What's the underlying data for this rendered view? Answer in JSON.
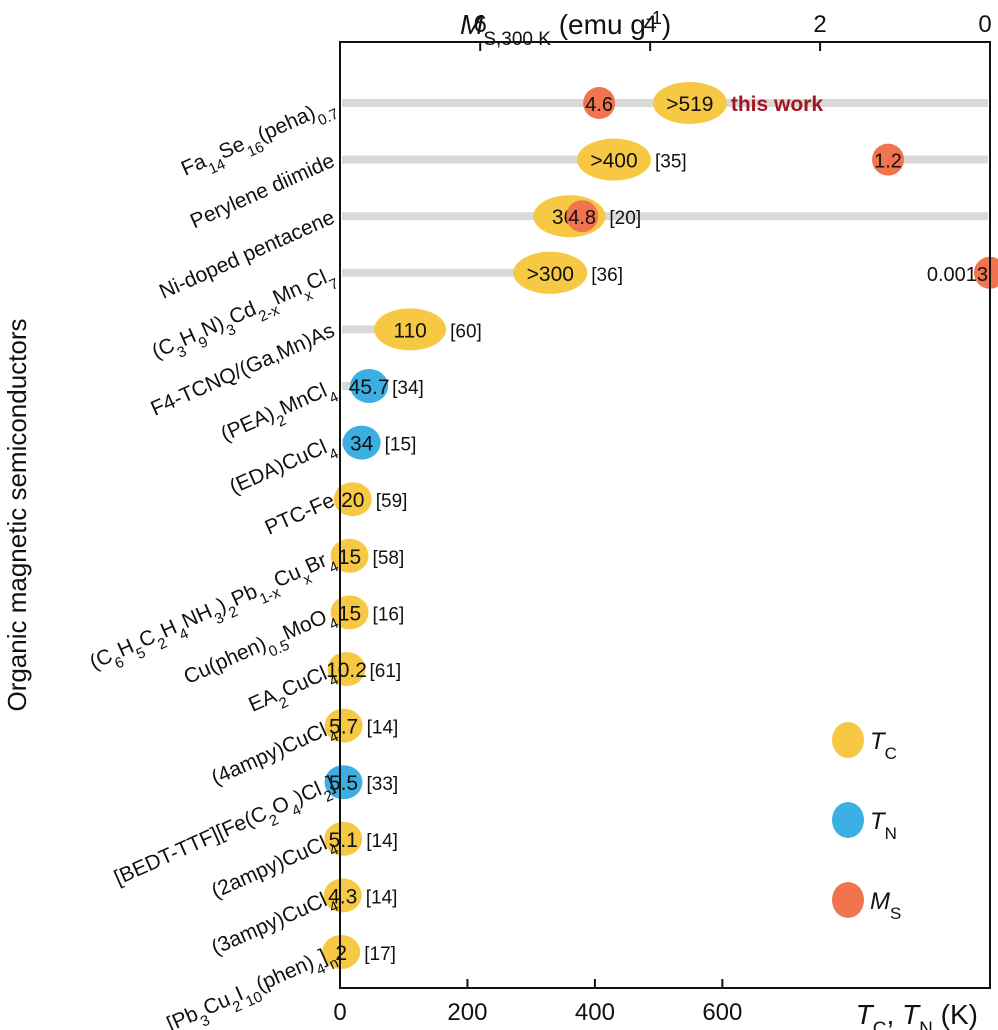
{
  "chart_data": {
    "type": "scatter",
    "ylabel": "Organic magnetic semiconductors",
    "xlabel_bottom": {
      "base1": "T",
      "sub1": "C",
      "sep": ", ",
      "base2": "T",
      "sub2": "N",
      "unit": " (K)"
    },
    "xlabel_top": {
      "base": "M",
      "sub": "S,300 K",
      "unit": " (emu g",
      "sup": "-1",
      "close": ")"
    },
    "xlim_bottom": [
      0,
      1020
    ],
    "xticks_bottom": [
      0,
      200,
      400,
      600
    ],
    "xlim_top": [
      0,
      7.65
    ],
    "xticks_top": [
      0,
      2,
      4,
      6
    ],
    "colors": {
      "Tc": "#F7C843",
      "Tn": "#3BAEE2",
      "Ms": "#F2744E",
      "track": "#D9D9D9",
      "highlight": "#A31621"
    },
    "legend": [
      {
        "key": "Tc",
        "base": "T",
        "sub": "C"
      },
      {
        "key": "Tn",
        "base": "T",
        "sub": "N"
      },
      {
        "key": "Ms",
        "base": "M",
        "sub": "S"
      }
    ],
    "rows": [
      {
        "label": "Fa<sub>14</sub>Se<sub>16</sub>(peha)<sub>0.7</sub>",
        "temp": 549,
        "temp_label": ">519",
        "kind": "Tc",
        "ref": "this work",
        "ms": 4.6,
        "ms_label": "4.6"
      },
      {
        "label": "Perylene diimide",
        "temp": 430,
        "temp_label": ">400",
        "kind": "Tc",
        "ref": "[35]",
        "ms": 1.2,
        "ms_label": "1.2"
      },
      {
        "label": "Ni-doped pentacene",
        "temp": 360,
        "temp_label": "360",
        "kind": "Tc",
        "ref": "[20]",
        "ms": 4.8,
        "ms_label": "4.8"
      },
      {
        "label": "(C<sub>3</sub>H<sub>9</sub>N)<sub>3</sub>Cd<sub>2-x</sub>Mn<sub>x</sub>Cl<sub>7</sub>",
        "temp": 330,
        "temp_label": ">300",
        "kind": "Tc",
        "ref": "[36]",
        "ms": 0.0013,
        "ms_label": "0.0013"
      },
      {
        "label": "F4-TCNQ/(Ga,Mn)As",
        "temp": 110,
        "temp_label": "110",
        "kind": "Tc",
        "ref": "[60]"
      },
      {
        "label": "(PEA)<sub>2</sub>MnCl<sub>4</sub>",
        "temp": 45.7,
        "temp_label": "45.7",
        "kind": "Tn",
        "ref": "[34]"
      },
      {
        "label": "(EDA)CuCl<sub>4</sub>",
        "temp": 34,
        "temp_label": "34",
        "kind": "Tn",
        "ref": "[15]"
      },
      {
        "label": "PTC-Fe",
        "temp": 20,
        "temp_label": "20",
        "kind": "Tc",
        "ref": "[59]"
      },
      {
        "label": "(C<sub>6</sub>H<sub>5</sub>C<sub>2</sub>H<sub>4</sub>NH<sub>3</sub>)<sub>2</sub>Pb<sub>1-x</sub>Cu<sub>x</sub>Br<sub>4</sub>",
        "temp": 15,
        "temp_label": "15",
        "kind": "Tc",
        "ref": "[58]"
      },
      {
        "label": "Cu(phen)<sub>0.5</sub>MoO<sub>4</sub>",
        "temp": 15,
        "temp_label": "15",
        "kind": "Tc",
        "ref": "[16]"
      },
      {
        "label": "EA<sub>2</sub>CuCl<sub>4</sub>",
        "temp": 10.2,
        "temp_label": "10.2",
        "kind": "Tc",
        "ref": "[61]"
      },
      {
        "label": "(4ampy)CuCl<sub>4</sub>",
        "temp": 5.7,
        "temp_label": "5.7",
        "kind": "Tc",
        "ref": "[14]"
      },
      {
        "label": "[BEDT-TTF][Fe(C<sub>2</sub>O<sub>4</sub>)Cl<sub>2</sub>]",
        "temp": 5.5,
        "temp_label": "5.5",
        "kind": "Tn",
        "ref": "[33]"
      },
      {
        "label": "(2ampy)CuCl<sub>4</sub>",
        "temp": 5.1,
        "temp_label": "5.1",
        "kind": "Tc",
        "ref": "[14]"
      },
      {
        "label": "(3ampy)CuCl<sub>4</sub>",
        "temp": 4.3,
        "temp_label": "4.3",
        "kind": "Tc",
        "ref": "[14]"
      },
      {
        "label": "[Pb<sub>3</sub>Cu<sub>2</sub>I<sub>10</sub>(phen)<sub>4</sub>]<sub>n</sub>",
        "temp": 2,
        "temp_label": "2",
        "kind": "Tc",
        "ref": "[17]"
      }
    ]
  }
}
